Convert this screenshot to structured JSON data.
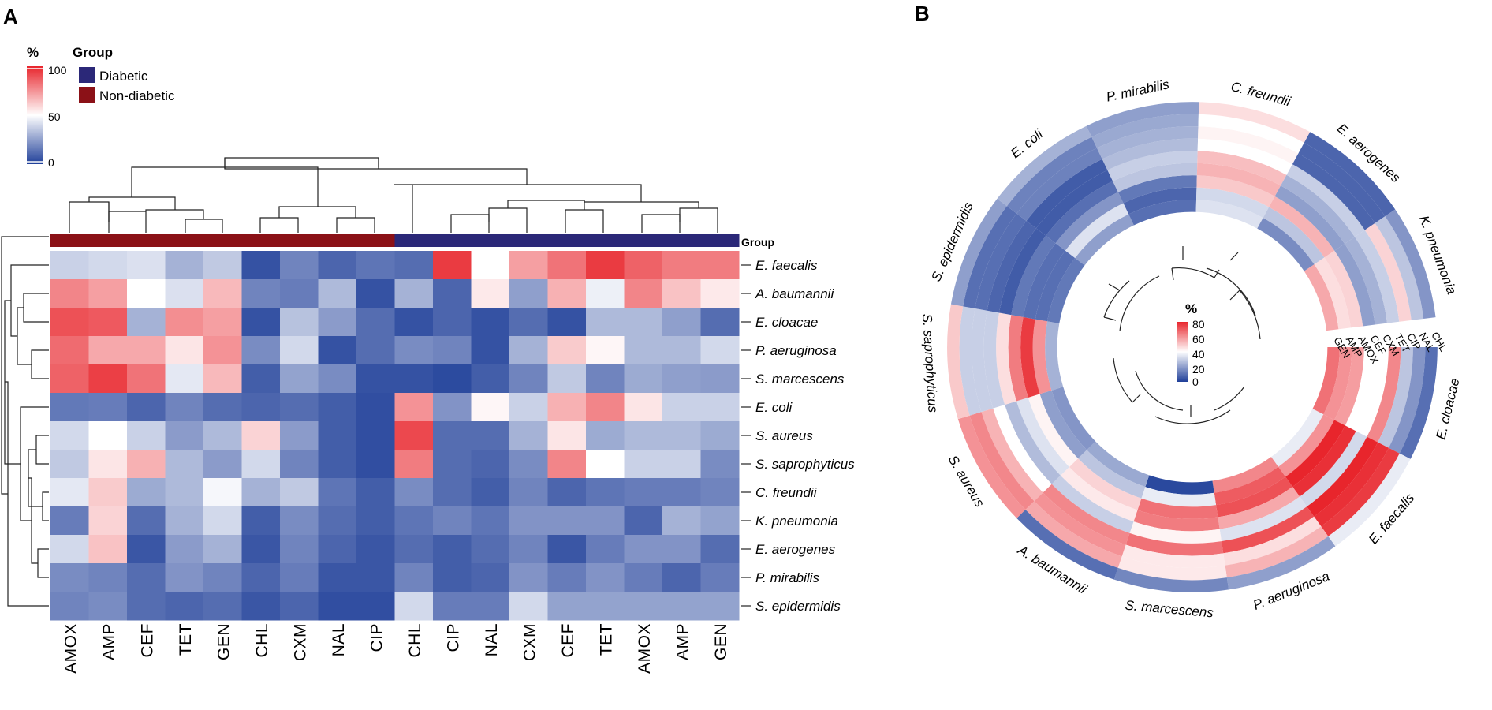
{
  "chart_data": [
    {
      "type": "heatmap",
      "panel_label": "A",
      "colorbar": {
        "title": "%",
        "ticks": [
          "100",
          "50",
          "0"
        ],
        "range": [
          0,
          100
        ],
        "colors": {
          "low": "#1f3f99",
          "mid": "#ffffff",
          "high": "#e8252c"
        }
      },
      "group_legend": {
        "title": "Group",
        "items": [
          {
            "name": "Diabetic",
            "color": "#2b2878"
          },
          {
            "name": "Non-diabetic",
            "color": "#8b1117"
          }
        ]
      },
      "group_bar_label": "Group",
      "columns": [
        "AMOX",
        "AMP",
        "CEF",
        "TET",
        "GEN",
        "CHL",
        "CXM",
        "NAL",
        "CIP",
        "CHL",
        "CIP",
        "NAL",
        "CXM",
        "CEF",
        "TET",
        "AMOX",
        "AMP",
        "GEN"
      ],
      "column_groups": [
        "Non-diabetic",
        "Non-diabetic",
        "Non-diabetic",
        "Non-diabetic",
        "Non-diabetic",
        "Non-diabetic",
        "Non-diabetic",
        "Non-diabetic",
        "Non-diabetic",
        "Diabetic",
        "Diabetic",
        "Diabetic",
        "Diabetic",
        "Diabetic",
        "Diabetic",
        "Diabetic",
        "Diabetic",
        "Diabetic"
      ],
      "rows": [
        "E. faecalis",
        "A. baumannii",
        "E. cloacae",
        "P. aeruginosa",
        "S. marcescens",
        "E. coli",
        "S. aureus",
        "S. saprophyticus",
        "C. freundii",
        "K. pneumonia",
        "E. aerogenes",
        "P. mirabilis",
        "S. epidermidis"
      ],
      "values": [
        [
          38,
          40,
          42,
          30,
          36,
          5,
          18,
          10,
          14,
          12,
          95,
          50,
          72,
          82,
          95,
          86,
          80,
          80
        ],
        [
          78,
          72,
          50,
          42,
          66,
          18,
          16,
          32,
          5,
          30,
          10,
          55,
          25,
          68,
          46,
          78,
          64,
          55
        ],
        [
          90,
          88,
          30,
          76,
          72,
          5,
          34,
          24,
          12,
          5,
          10,
          5,
          12,
          5,
          32,
          32,
          25,
          12
        ],
        [
          84,
          70,
          70,
          56,
          75,
          20,
          40,
          5,
          12,
          20,
          18,
          5,
          30,
          62,
          52,
          32,
          32,
          40
        ],
        [
          86,
          94,
          82,
          44,
          66,
          8,
          26,
          20,
          5,
          5,
          3,
          8,
          18,
          36,
          18,
          28,
          25,
          24
        ],
        [
          15,
          16,
          10,
          18,
          12,
          10,
          12,
          8,
          4,
          75,
          22,
          52,
          38,
          68,
          78,
          56,
          38,
          38
        ],
        [
          40,
          50,
          38,
          24,
          32,
          60,
          24,
          8,
          4,
          92,
          12,
          12,
          30,
          56,
          28,
          32,
          32,
          28
        ],
        [
          36,
          56,
          68,
          32,
          24,
          40,
          18,
          8,
          4,
          80,
          12,
          10,
          20,
          78,
          50,
          38,
          38,
          20
        ],
        [
          44,
          62,
          28,
          32,
          48,
          30,
          36,
          14,
          8,
          20,
          12,
          8,
          18,
          10,
          14,
          16,
          16,
          18
        ],
        [
          16,
          60,
          12,
          30,
          40,
          8,
          20,
          12,
          8,
          14,
          18,
          14,
          22,
          22,
          22,
          10,
          30,
          26
        ],
        [
          40,
          64,
          6,
          24,
          30,
          6,
          18,
          10,
          6,
          12,
          8,
          12,
          18,
          6,
          16,
          22,
          22,
          12
        ],
        [
          20,
          18,
          12,
          22,
          18,
          10,
          16,
          6,
          6,
          18,
          8,
          10,
          22,
          16,
          22,
          16,
          10,
          16
        ],
        [
          18,
          20,
          12,
          10,
          12,
          6,
          10,
          4,
          4,
          40,
          16,
          16,
          40,
          26,
          26,
          26,
          26,
          26
        ]
      ],
      "row_dendrogram": "hierarchical clustering of organisms",
      "column_dendrogram": "hierarchical clustering of antibiotics"
    },
    {
      "type": "heatmap",
      "subtype": "circular",
      "panel_label": "B",
      "colorbar": {
        "title": "%",
        "ticks": [
          "80",
          "60",
          "40",
          "20",
          "0"
        ],
        "range": [
          0,
          80
        ],
        "colors": {
          "low": "#1f3f99",
          "mid": "#ffffff",
          "high": "#e8252c"
        }
      },
      "rings": [
        "GEN",
        "AMP",
        "AMOX",
        "CEF",
        "CXM",
        "TET",
        "CIP",
        "NAL",
        "CHL"
      ],
      "sectors": [
        "E. cloacae",
        "E. faecalis",
        "P. aeruginosa",
        "S. marcescens",
        "A. baumannii",
        "S. aureus",
        "S. saprophyticus",
        "S. epidermidis",
        "E. coli",
        "P. mirabilis",
        "C. freundii",
        "E. aerogenes",
        "K. pneumonia"
      ],
      "values": [
        [
          66,
          60,
          58,
          40,
          40,
          62,
          28,
          18,
          10
        ],
        [
          36,
          60,
          80,
          78,
          32,
          80,
          78,
          76,
          36
        ],
        [
          62,
          70,
          72,
          56,
          34,
          72,
          46,
          54,
          20
        ],
        [
          2,
          36,
          66,
          64,
          42,
          66,
          44,
          44,
          15
        ],
        [
          22,
          28,
          48,
          44,
          30,
          62,
          60,
          56,
          10
        ],
        [
          18,
          20,
          42,
          34,
          26,
          40,
          54,
          62,
          60
        ],
        [
          24,
          60,
          76,
          64,
          46,
          30,
          30,
          30,
          50
        ],
        [
          12,
          10,
          10,
          12,
          6,
          8,
          10,
          10,
          20
        ],
        [
          20,
          34,
          18,
          10,
          6,
          6,
          14,
          14,
          24
        ],
        [
          10,
          8,
          12,
          28,
          30,
          26,
          24,
          22,
          20
        ],
        [
          34,
          32,
          50,
          54,
          52,
          40,
          42,
          40,
          46
        ],
        [
          16,
          28,
          54,
          20,
          24,
          30,
          8,
          8,
          8
        ],
        [
          56,
          46,
          48,
          20,
          24,
          30,
          48,
          28,
          18
        ]
      ]
    }
  ]
}
